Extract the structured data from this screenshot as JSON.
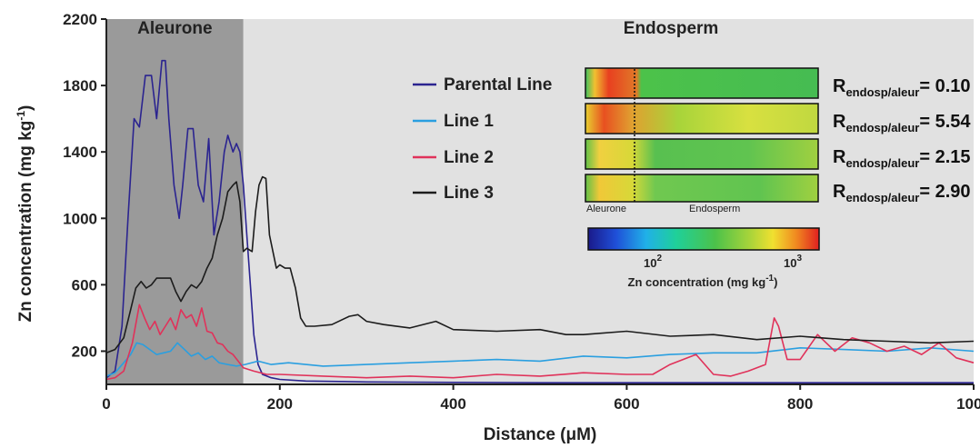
{
  "chart_data": {
    "type": "line",
    "xlabel": "Distance (μM)",
    "ylabel": "Zn concentration (mg kg",
    "ylabel_sup": "-1",
    "ylabel_tail": ")",
    "xlim": [
      0,
      1000
    ],
    "ylim": [
      0,
      2200
    ],
    "xticks": [
      "0",
      "200",
      "400",
      "600",
      "800",
      "1000"
    ],
    "yticks": [
      "200",
      "600",
      "1000",
      "1400",
      "1800",
      "2200"
    ],
    "regions": [
      {
        "label": "Aleurone",
        "x_start": 0,
        "x_end": 158,
        "color": "#9a9a9a"
      },
      {
        "label": "Endosperm",
        "x_start": 158,
        "x_end": 1000,
        "color": "#e1e1e1"
      }
    ],
    "series": [
      {
        "name": "Parental Line",
        "color": "#2b2490",
        "x": [
          0,
          10,
          18,
          25,
          32,
          38,
          45,
          52,
          58,
          64,
          68,
          72,
          78,
          84,
          88,
          94,
          100,
          106,
          112,
          118,
          124,
          130,
          136,
          140,
          146,
          150,
          154,
          158,
          162,
          166,
          170,
          175,
          180,
          190,
          200,
          230,
          300,
          400,
          500,
          600,
          700,
          800,
          900,
          1000
        ],
        "y": [
          40,
          80,
          350,
          1000,
          1600,
          1550,
          1860,
          1860,
          1600,
          1950,
          1950,
          1600,
          1200,
          1000,
          1200,
          1540,
          1540,
          1200,
          1100,
          1480,
          900,
          1100,
          1400,
          1500,
          1400,
          1450,
          1400,
          1200,
          900,
          600,
          300,
          120,
          60,
          40,
          30,
          20,
          15,
          12,
          10,
          10,
          10,
          10,
          10,
          10
        ]
      },
      {
        "name": "Line 1",
        "color": "#2a9fe0",
        "x": [
          0,
          10,
          20,
          28,
          35,
          42,
          50,
          58,
          66,
          74,
          82,
          90,
          98,
          106,
          114,
          122,
          130,
          140,
          150,
          160,
          175,
          190,
          210,
          250,
          300,
          350,
          400,
          450,
          500,
          550,
          600,
          650,
          700,
          750,
          800,
          850,
          900,
          950,
          1000
        ],
        "y": [
          50,
          70,
          130,
          180,
          250,
          240,
          210,
          180,
          190,
          200,
          250,
          210,
          170,
          190,
          150,
          170,
          130,
          120,
          110,
          120,
          140,
          120,
          130,
          110,
          120,
          130,
          140,
          150,
          140,
          170,
          160,
          180,
          190,
          190,
          220,
          210,
          200,
          220,
          200
        ]
      },
      {
        "name": "Line 2",
        "color": "#e0325a",
        "x": [
          0,
          10,
          20,
          30,
          38,
          44,
          50,
          56,
          62,
          68,
          74,
          80,
          86,
          92,
          98,
          104,
          110,
          116,
          122,
          128,
          134,
          140,
          146,
          152,
          158,
          170,
          185,
          200,
          250,
          300,
          350,
          400,
          450,
          500,
          550,
          600,
          630,
          650,
          680,
          700,
          720,
          740,
          760,
          770,
          775,
          785,
          800,
          820,
          840,
          860,
          880,
          900,
          920,
          940,
          960,
          980,
          1000
        ],
        "y": [
          30,
          40,
          80,
          250,
          480,
          400,
          330,
          380,
          300,
          350,
          400,
          330,
          450,
          400,
          420,
          350,
          460,
          320,
          310,
          250,
          240,
          200,
          180,
          140,
          100,
          80,
          60,
          60,
          50,
          40,
          50,
          40,
          60,
          50,
          70,
          60,
          60,
          120,
          180,
          60,
          50,
          80,
          120,
          400,
          350,
          150,
          150,
          300,
          200,
          280,
          250,
          200,
          230,
          180,
          250,
          160,
          130
        ]
      },
      {
        "name": "Line 3",
        "color": "#1c1c1c",
        "x": [
          0,
          10,
          20,
          28,
          34,
          40,
          46,
          52,
          58,
          66,
          74,
          80,
          86,
          92,
          98,
          104,
          110,
          116,
          122,
          128,
          134,
          140,
          146,
          150,
          154,
          158,
          162,
          168,
          172,
          176,
          180,
          184,
          188,
          192,
          196,
          200,
          206,
          212,
          218,
          224,
          230,
          240,
          260,
          280,
          290,
          300,
          320,
          350,
          380,
          400,
          450,
          500,
          530,
          550,
          600,
          650,
          700,
          750,
          800,
          850,
          900,
          950,
          1000
        ],
        "y": [
          190,
          210,
          280,
          450,
          580,
          620,
          580,
          600,
          640,
          640,
          640,
          560,
          500,
          560,
          600,
          580,
          620,
          700,
          760,
          900,
          1000,
          1160,
          1200,
          1220,
          1100,
          800,
          820,
          800,
          1040,
          1200,
          1250,
          1240,
          900,
          800,
          700,
          720,
          700,
          700,
          580,
          400,
          350,
          350,
          360,
          410,
          420,
          380,
          360,
          340,
          380,
          330,
          320,
          330,
          300,
          300,
          320,
          290,
          300,
          270,
          290,
          270,
          260,
          250,
          260
        ]
      }
    ],
    "legend_position": "center",
    "inset": {
      "rows": [
        {
          "label": "R",
          "sub": "endosp/aleur",
          "value": "= 0.10"
        },
        {
          "label": "R",
          "sub": "endosp/aleur",
          "value": "= 5.54"
        },
        {
          "label": "R",
          "sub": "endosp/aleur",
          "value": "= 2.15"
        },
        {
          "label": "R",
          "sub": "endosp/aleur",
          "value": "= 2.90"
        }
      ],
      "image_labels": [
        "Aleurone",
        "Endosperm"
      ],
      "colorbar": {
        "ticks": [
          "10",
          "10"
        ],
        "tick_sups": [
          "2",
          "3"
        ],
        "title": "Zn concentration (mg kg",
        "title_sup": "-1",
        "title_tail": ")"
      }
    }
  }
}
